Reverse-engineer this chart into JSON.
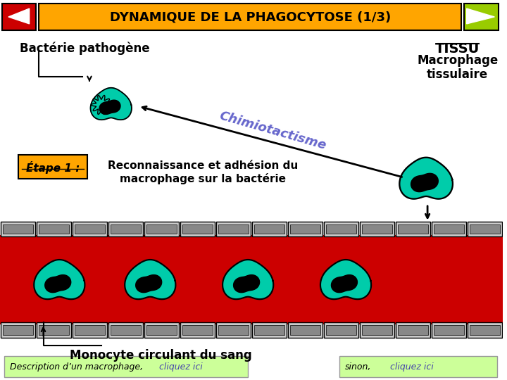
{
  "title": "DYNAMIQUE DE LA PHAGOCYTOSE (1/3)",
  "title_bg": "#FFA500",
  "title_color": "#000000",
  "bg_color": "#FFFFFF",
  "left_arrow_bg": "#CC0000",
  "right_arrow_bg": "#99CC00",
  "tissue_label": "TISSU",
  "macrophage_label": "Macrophage\ntissulaire",
  "bacterie_label": "Bactérie pathogène",
  "chimio_label": "Chimiotactisme",
  "etape_label": "Étape 1 :",
  "reconnais_label": "Reconnaissance et adhésion du\nmacrophage sur la bactérie",
  "monocyte_label": "Monocyte circulant du sang",
  "desc_label": "Description d’un macrophage,",
  "cliquez_label": "cliquez ici",
  "sinon_label": "sinon,",
  "cliquez2_label": "cliquez ici",
  "blood_color": "#CC0000",
  "cell_color": "#00CCAA",
  "cell_outline": "#000000",
  "yellow_color": "#FFDD00",
  "green_button_bg": "#CCFF99",
  "wall_color": "#CCCCCC",
  "wall_dark": "#888888",
  "etape_bg": "#FFA500",
  "chimio_color": "#6666CC"
}
